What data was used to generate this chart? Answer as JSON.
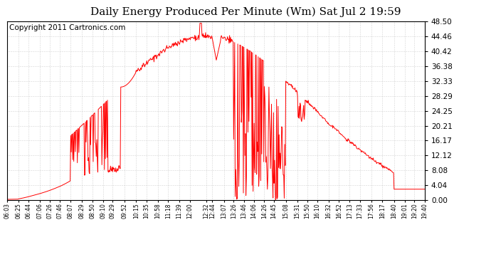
{
  "title": "Daily Energy Produced Per Minute (Wm) Sat Jul 2 19:59",
  "copyright": "Copyright 2011 Cartronics.com",
  "y_max": 48.5,
  "y_min": 0.0,
  "y_ticks": [
    0.0,
    4.04,
    8.08,
    12.12,
    16.17,
    20.21,
    24.25,
    28.29,
    32.33,
    36.38,
    40.42,
    44.46,
    48.5
  ],
  "x_labels": [
    "06:03",
    "06:25",
    "06:44",
    "07:06",
    "07:26",
    "07:46",
    "08:07",
    "08:29",
    "08:50",
    "09:10",
    "09:29",
    "09:52",
    "10:15",
    "10:35",
    "10:58",
    "11:18",
    "11:39",
    "12:00",
    "12:32",
    "12:44",
    "13:07",
    "13:26",
    "13:46",
    "14:06",
    "14:26",
    "14:45",
    "15:08",
    "15:31",
    "15:50",
    "16:10",
    "16:32",
    "16:52",
    "17:13",
    "17:33",
    "17:56",
    "18:17",
    "18:40",
    "19:01",
    "19:20",
    "19:40"
  ],
  "line_color": "#ff0000",
  "background_color": "#ffffff",
  "grid_color": "#b0b0b0",
  "title_fontsize": 11,
  "copyright_fontsize": 7.5
}
